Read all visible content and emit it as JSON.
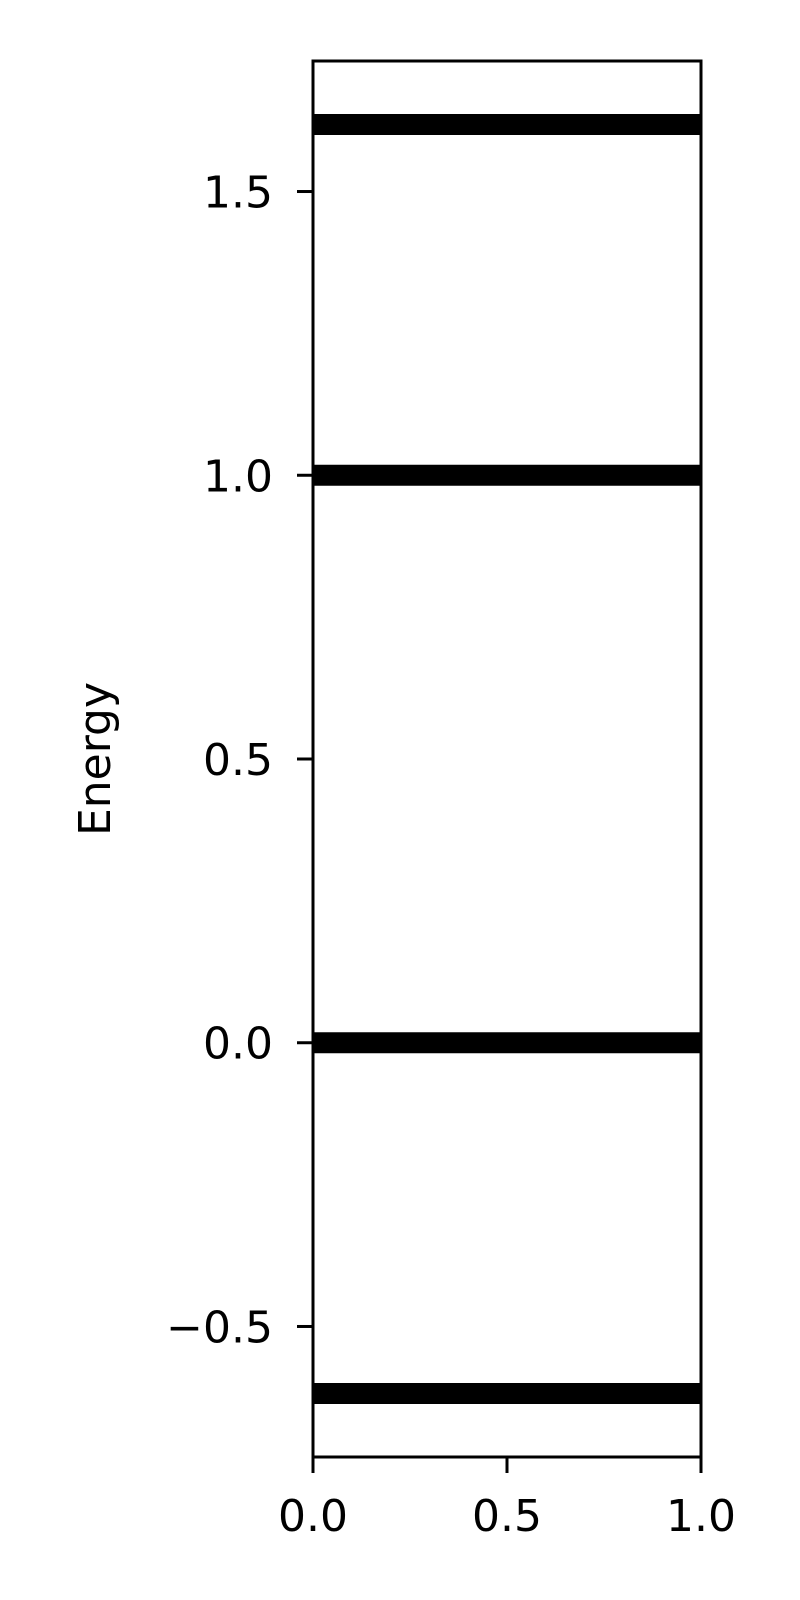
{
  "chart_data": {
    "type": "line",
    "title": "",
    "xlabel": "",
    "ylabel": "Energy",
    "xlim": [
      0.0,
      1.0
    ],
    "ylim": [
      -0.73,
      1.73
    ],
    "x_ticks": [
      0.0,
      0.5,
      1.0
    ],
    "x_tick_labels": [
      "0.0",
      "0.5",
      "1.0"
    ],
    "y_ticks": [
      -0.5,
      0.0,
      0.5,
      1.0,
      1.5
    ],
    "y_tick_labels": [
      "−0.5",
      "0.0",
      "0.5",
      "1.0",
      "1.5"
    ],
    "grid": false,
    "legend": "none",
    "line_color": "#000000",
    "energy_levels": [
      -0.618,
      0.0,
      1.0,
      1.618
    ]
  }
}
